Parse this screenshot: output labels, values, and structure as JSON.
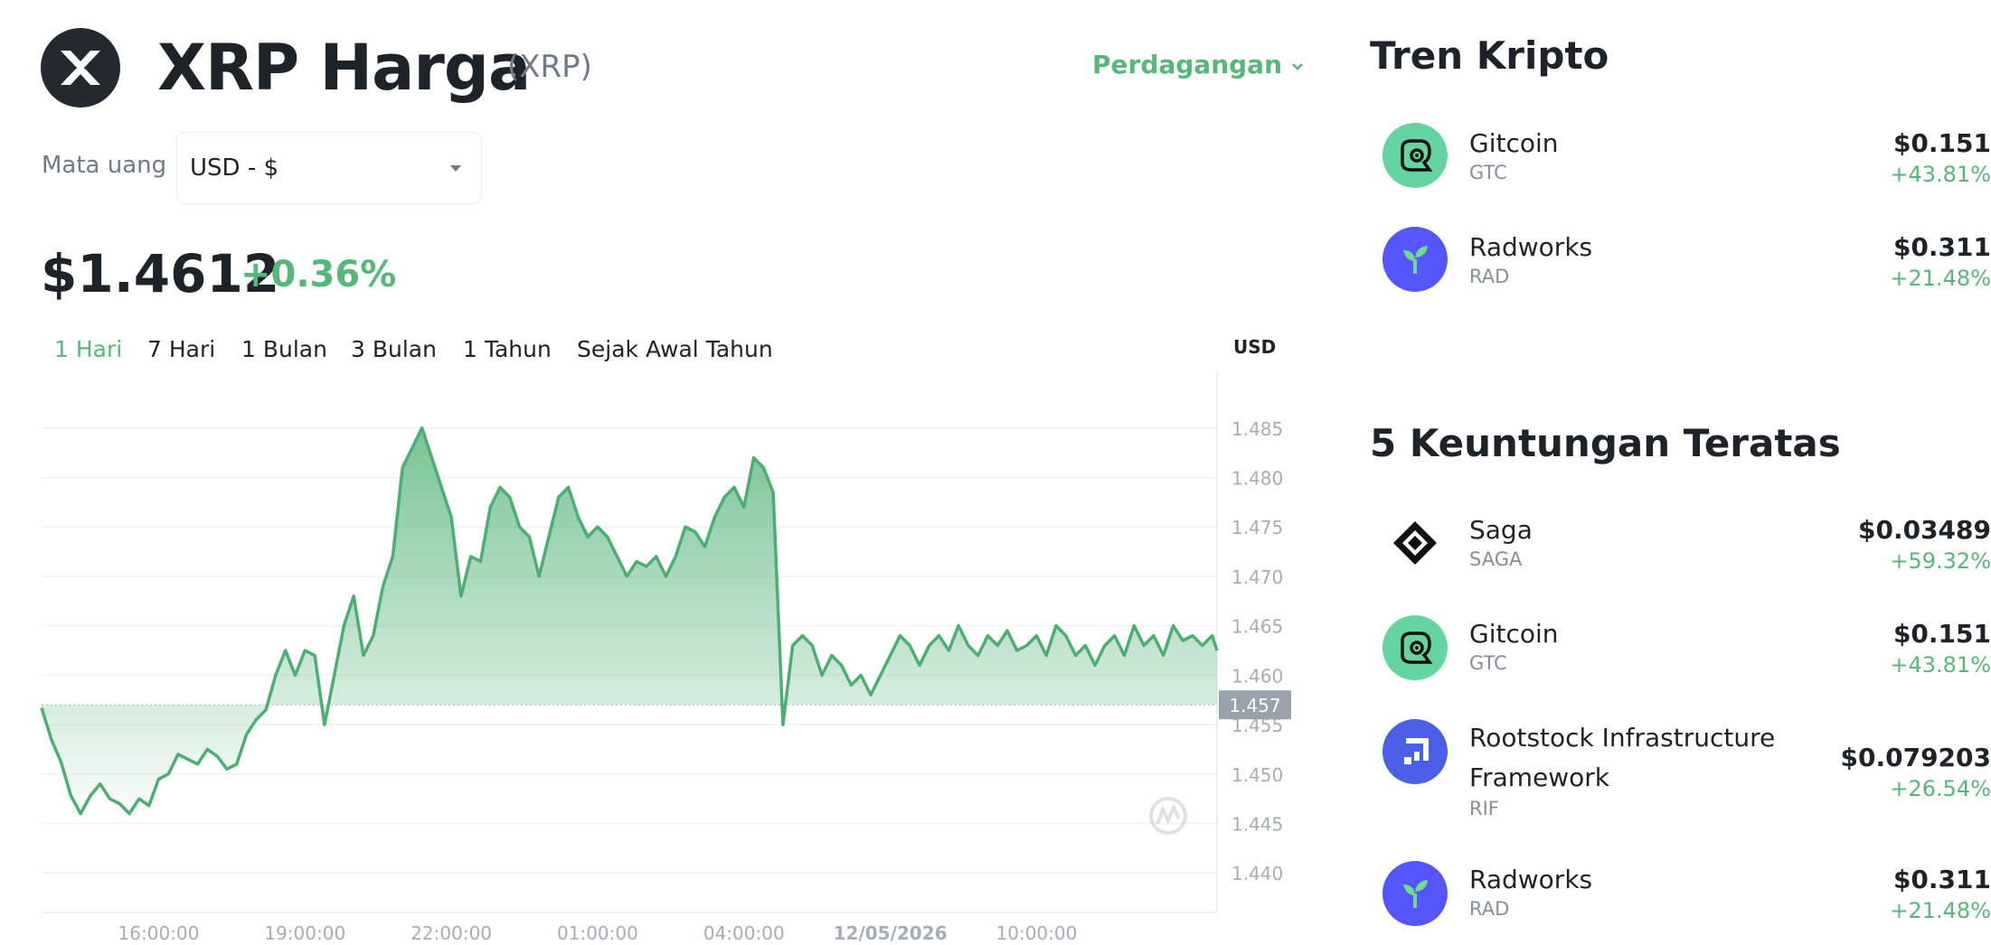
{
  "header": {
    "title": "XRP Harga",
    "symbol": "(XRP)",
    "trade_label": "Perdagangan",
    "logo_icon": "xrp-logo-icon"
  },
  "currency": {
    "label": "Mata uang",
    "selected": "USD - $"
  },
  "price": {
    "value": "$1.4612",
    "change": "+0.36%"
  },
  "range_tabs": [
    {
      "label": "1 Hari",
      "active": true
    },
    {
      "label": "7 Hari",
      "active": false
    },
    {
      "label": "1 Bulan",
      "active": false
    },
    {
      "label": "3 Bulan",
      "active": false
    },
    {
      "label": "1 Tahun",
      "active": false
    },
    {
      "label": "Sejak Awal Tahun",
      "active": false
    }
  ],
  "chart_data": {
    "type": "area",
    "unit": "USD",
    "current_price_label": "1.457",
    "reference_value": 1.457,
    "ylim": [
      1.436,
      1.489
    ],
    "y_ticks": [
      1.485,
      1.48,
      1.475,
      1.47,
      1.465,
      1.46,
      1.455,
      1.45,
      1.445,
      1.44
    ],
    "y_tick_labels": [
      "1.485",
      "1.480",
      "1.475",
      "1.470",
      "1.465",
      "1.460",
      "1.455",
      "1.450",
      "1.445",
      "1.440"
    ],
    "x_ticks": [
      "16:00:00",
      "19:00:00",
      "22:00:00",
      "01:00:00",
      "04:00:00",
      "12/05/2026",
      "10:00:00"
    ],
    "x_tick_hours": [
      16,
      19,
      22,
      25,
      28,
      31,
      34
    ],
    "x_range_hours": [
      13.6,
      37.7
    ],
    "line_color": "#4caf72",
    "grid": true,
    "series": [
      {
        "x": [
          13.6,
          13.8,
          14.0,
          14.2,
          14.4,
          14.6,
          14.8,
          15.0,
          15.2,
          15.4,
          15.6,
          15.8,
          16.0,
          16.2,
          16.4,
          16.6,
          16.8,
          17.0,
          17.2,
          17.4,
          17.6,
          17.8,
          18.0,
          18.2,
          18.4,
          18.6,
          18.8,
          19.0,
          19.2,
          19.4,
          19.6,
          19.8,
          20.0,
          20.2,
          20.4,
          20.6,
          20.8,
          21.0,
          21.2,
          21.4,
          21.6,
          21.8,
          22.0,
          22.2,
          22.4,
          22.6,
          22.8,
          23.0,
          23.2,
          23.4,
          23.6,
          23.8,
          24.0,
          24.2,
          24.4,
          24.6,
          24.8,
          25.0,
          25.2,
          25.4,
          25.6,
          25.8,
          26.0,
          26.2,
          26.4,
          26.6,
          26.8,
          27.0,
          27.2,
          27.4,
          27.6,
          27.8,
          28.0,
          28.2,
          28.4,
          28.6,
          28.8,
          29.0,
          29.2,
          29.4,
          29.6,
          29.8,
          30.0,
          30.2,
          30.4,
          30.6,
          30.8,
          31.0,
          31.2,
          31.4,
          31.6,
          31.8,
          32.0,
          32.2,
          32.4,
          32.6,
          32.8,
          33.0,
          33.2,
          33.4,
          33.6,
          33.8,
          34.0,
          34.2,
          34.4,
          34.6,
          34.8,
          35.0,
          35.2,
          35.4,
          35.6,
          35.8,
          36.0,
          36.2,
          36.4,
          36.6,
          36.8,
          37.0,
          37.2,
          37.4,
          37.6,
          37.7
        ],
        "values": [
          1.4567,
          1.4535,
          1.4512,
          1.4478,
          1.446,
          1.4478,
          1.449,
          1.4475,
          1.447,
          1.446,
          1.4475,
          1.4468,
          1.4495,
          1.45,
          1.452,
          1.4515,
          1.451,
          1.4525,
          1.4518,
          1.4505,
          1.451,
          1.454,
          1.4555,
          1.4565,
          1.46,
          1.4625,
          1.46,
          1.4625,
          1.462,
          1.455,
          1.46,
          1.465,
          1.468,
          1.462,
          1.464,
          1.469,
          1.472,
          1.481,
          1.483,
          1.485,
          1.482,
          1.479,
          1.476,
          1.468,
          1.472,
          1.4715,
          1.477,
          1.479,
          1.478,
          1.475,
          1.474,
          1.47,
          1.474,
          1.478,
          1.479,
          1.476,
          1.474,
          1.475,
          1.474,
          1.472,
          1.47,
          1.4715,
          1.471,
          1.472,
          1.47,
          1.472,
          1.475,
          1.4745,
          1.473,
          1.476,
          1.478,
          1.479,
          1.477,
          1.482,
          1.481,
          1.4785,
          1.455,
          1.463,
          1.464,
          1.463,
          1.46,
          1.462,
          1.461,
          1.459,
          1.46,
          1.458,
          1.46,
          1.462,
          1.464,
          1.463,
          1.461,
          1.463,
          1.464,
          1.4625,
          1.465,
          1.463,
          1.462,
          1.464,
          1.463,
          1.4645,
          1.4625,
          1.463,
          1.464,
          1.462,
          1.465,
          1.464,
          1.462,
          1.463,
          1.461,
          1.463,
          1.464,
          1.462,
          1.465,
          1.463,
          1.464,
          1.462,
          1.465,
          1.4635,
          1.464,
          1.463,
          1.464,
          1.4625
        ]
      }
    ]
  },
  "trending": {
    "title": "Tren Kripto",
    "items": [
      {
        "name": "Gitcoin",
        "symbol": "GTC",
        "price": "$0.151",
        "change": "+43.81%",
        "icon": "gitcoin-icon",
        "color": "#64d4a0"
      },
      {
        "name": "Radworks",
        "symbol": "RAD",
        "price": "$0.311",
        "change": "+21.48%",
        "icon": "radworks-icon",
        "color": "#5555ff"
      }
    ]
  },
  "gainers": {
    "title": "5 Keuntungan Teratas",
    "items": [
      {
        "name": "Saga",
        "symbol": "SAGA",
        "price": "$0.03489",
        "change": "+59.32%",
        "icon": "saga-icon",
        "color": "#ffffff"
      },
      {
        "name": "Gitcoin",
        "symbol": "GTC",
        "price": "$0.151",
        "change": "+43.81%",
        "icon": "gitcoin-icon",
        "color": "#64d4a0"
      },
      {
        "name": "Rootstock Infrastructure",
        "name2": "Framework",
        "symbol": "RIF",
        "price": "$0.079203",
        "change": "+26.54%",
        "icon": "rootstock-icon",
        "color": "#4b5ee8"
      },
      {
        "name": "Radworks",
        "symbol": "RAD",
        "price": "$0.311",
        "change": "+21.48%",
        "icon": "radworks-icon",
        "color": "#5555ff"
      }
    ]
  }
}
